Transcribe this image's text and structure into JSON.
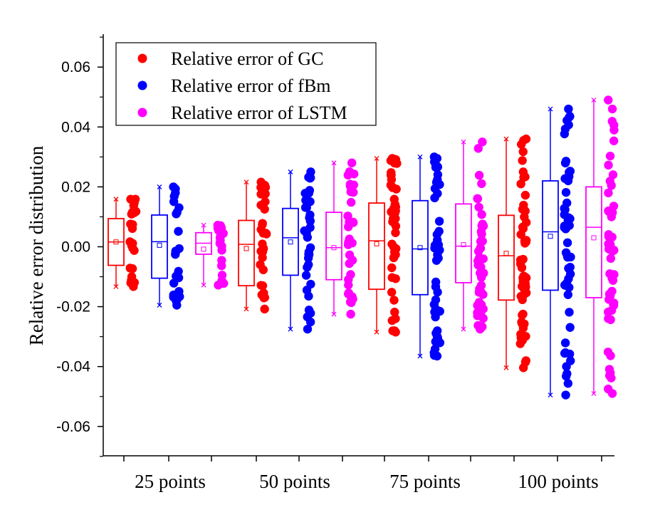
{
  "chart_data": {
    "type": "box",
    "ylabel": "Relative error distribution",
    "ylim": [
      -0.07,
      0.07
    ],
    "yticks": [
      "-0.06",
      "-0.04",
      "-0.02",
      "0.00",
      "0.02",
      "0.04",
      "0.06"
    ],
    "yticks_values": [
      -0.06,
      -0.04,
      -0.02,
      0.0,
      0.02,
      0.04,
      0.06
    ],
    "groups": [
      "25 points",
      "50 points",
      "75 points",
      "100 points"
    ],
    "legend": [
      {
        "label": "Relative error of GC",
        "color": "#ff0000"
      },
      {
        "label": "Relative error of fBm",
        "color": "#0000ff"
      },
      {
        "label": "Relative error of LSTM",
        "color": "#ff00ff"
      }
    ],
    "series": [
      {
        "name": "Relative error of GC",
        "color": "#ff0000",
        "boxes": [
          {
            "group": "25 points",
            "min": -0.0133,
            "q1": -0.0062,
            "median": 0.0016,
            "q3": 0.0094,
            "max": 0.0159,
            "mean": 0.0016
          },
          {
            "group": "50 points",
            "min": -0.0208,
            "q1": -0.013,
            "median": 0.0008,
            "q3": 0.0088,
            "max": 0.0216,
            "mean": -0.0006
          },
          {
            "group": "75 points",
            "min": -0.0285,
            "q1": -0.0142,
            "median": 0.002,
            "q3": 0.0146,
            "max": 0.0295,
            "mean": 0.001
          },
          {
            "group": "100 points",
            "min": -0.0404,
            "q1": -0.0178,
            "median": -0.003,
            "q3": 0.0105,
            "max": 0.036,
            "mean": -0.0022
          }
        ]
      },
      {
        "name": "Relative error of fBm",
        "color": "#0000ff",
        "boxes": [
          {
            "group": "25 points",
            "min": -0.0195,
            "q1": -0.0105,
            "median": 0.0017,
            "q3": 0.0106,
            "max": 0.02,
            "mean": 0.0005
          },
          {
            "group": "50 points",
            "min": -0.0275,
            "q1": -0.0095,
            "median": 0.003,
            "q3": 0.0128,
            "max": 0.025,
            "mean": 0.0016
          },
          {
            "group": "75 points",
            "min": -0.0365,
            "q1": -0.016,
            "median": -0.0007,
            "q3": 0.0154,
            "max": 0.03,
            "mean": -0.0003
          },
          {
            "group": "100 points",
            "min": -0.0495,
            "q1": -0.0145,
            "median": 0.005,
            "q3": 0.022,
            "max": 0.046,
            "mean": 0.0035
          }
        ]
      },
      {
        "name": "Relative error of LSTM",
        "color": "#ff00ff",
        "boxes": [
          {
            "group": "25 points",
            "min": -0.0128,
            "q1": -0.0025,
            "median": 0.0012,
            "q3": 0.0047,
            "max": 0.0072,
            "mean": -0.0008
          },
          {
            "group": "50 points",
            "min": -0.0225,
            "q1": -0.011,
            "median": -0.0003,
            "q3": 0.0115,
            "max": 0.028,
            "mean": -0.0003
          },
          {
            "group": "75 points",
            "min": -0.0275,
            "q1": -0.012,
            "median": 0.0002,
            "q3": 0.0143,
            "max": 0.035,
            "mean": 0.0007
          },
          {
            "group": "100 points",
            "min": -0.049,
            "q1": -0.017,
            "median": 0.0065,
            "q3": 0.02,
            "max": 0.049,
            "mean": 0.003
          }
        ]
      }
    ]
  }
}
